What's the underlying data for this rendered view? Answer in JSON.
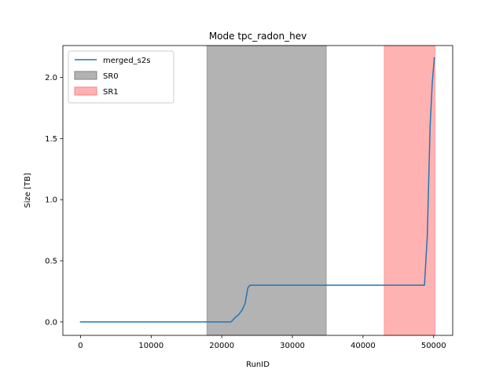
{
  "chart_data": {
    "type": "line",
    "title": "Mode tpc_radon_hev",
    "xlabel": "RunID",
    "ylabel": "Size [TB]",
    "xlim": [
      -2500,
      52700
    ],
    "ylim": [
      -0.11,
      2.26
    ],
    "xticks": [
      0,
      10000,
      20000,
      30000,
      40000,
      50000
    ],
    "xtick_labels": [
      "0",
      "10000",
      "20000",
      "30000",
      "40000",
      "50000"
    ],
    "yticks": [
      0.0,
      0.5,
      1.0,
      1.5,
      2.0
    ],
    "ytick_labels": [
      "0.0",
      "0.5",
      "1.0",
      "1.5",
      "2.0"
    ],
    "grid": false,
    "legend_position": "top-left",
    "series": [
      {
        "name": "merged_s2s",
        "color": "#1f77b4",
        "x": [
          0,
          17000,
          21300,
          21800,
          22400,
          22900,
          23300,
          23700,
          24000,
          24500,
          30000,
          40000,
          48500,
          48700,
          49100,
          49500,
          49800,
          50100
        ],
        "y": [
          0.0,
          0.0,
          0.0,
          0.03,
          0.06,
          0.1,
          0.15,
          0.28,
          0.3,
          0.3,
          0.3,
          0.3,
          0.3,
          0.3,
          0.7,
          1.6,
          1.95,
          2.16
        ]
      }
    ],
    "spans": [
      {
        "name": "SR0",
        "x0": 17900,
        "x1": 34800,
        "color": "#808080",
        "opacity": 0.6
      },
      {
        "name": "SR1",
        "x0": 43000,
        "x1": 50200,
        "color": "#ff7f7f",
        "opacity": 0.6
      }
    ]
  }
}
